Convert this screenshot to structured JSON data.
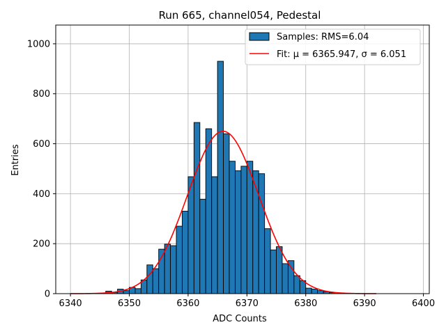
{
  "chart_data": {
    "type": "bar",
    "title": "Run 665, channel054, Pedestal",
    "xlabel": "ADC Counts",
    "ylabel": "Entries",
    "xlim": [
      6337.5,
      6401.0
    ],
    "ylim": [
      0,
      1075
    ],
    "xticks": [
      6340,
      6350,
      6360,
      6370,
      6380,
      6390,
      6400
    ],
    "yticks": [
      0,
      200,
      400,
      600,
      800,
      1000
    ],
    "grid": true,
    "bin_width": 1,
    "bin_starts": [
      6346,
      6347,
      6348,
      6349,
      6350,
      6351,
      6352,
      6353,
      6354,
      6355,
      6356,
      6357,
      6358,
      6359,
      6360,
      6361,
      6362,
      6363,
      6364,
      6365,
      6366,
      6367,
      6368,
      6369,
      6370,
      6371,
      6372,
      6373,
      6374,
      6375,
      6376,
      6377,
      6378,
      6379,
      6380,
      6381,
      6382,
      6383,
      6384
    ],
    "counts": [
      10,
      5,
      18,
      12,
      25,
      20,
      55,
      115,
      100,
      178,
      198,
      192,
      270,
      330,
      468,
      685,
      378,
      660,
      468,
      930,
      640,
      530,
      492,
      510,
      530,
      492,
      480,
      260,
      175,
      188,
      120,
      132,
      72,
      52,
      22,
      18,
      12,
      8,
      4
    ],
    "fit": {
      "type": "gaussian",
      "mu": 6365.947,
      "sigma": 6.051,
      "peak": 650,
      "x_range": [
        6340,
        6392
      ]
    },
    "series": [
      {
        "name": "Samples: RMS=6.04",
        "type": "histogram",
        "color": "#1f77b4",
        "edgecolor": "#000000"
      },
      {
        "name": "Fit: μ = 6365.947, σ = 6.051",
        "type": "line",
        "color": "#ff0000"
      }
    ],
    "legend_position": "top-right"
  }
}
